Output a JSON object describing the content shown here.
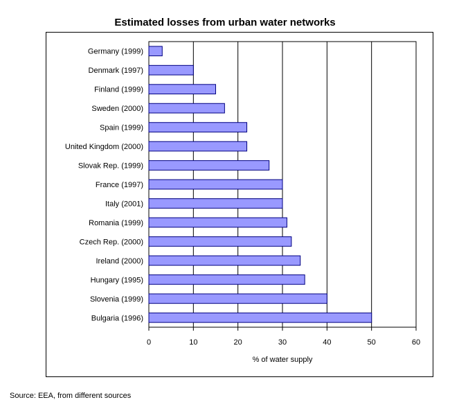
{
  "chart_data": {
    "type": "bar",
    "orientation": "horizontal",
    "title": "Estimated losses from urban water networks",
    "xlabel": "% of water supply",
    "ylabel": "",
    "categories": [
      "Germany (1999)",
      "Denmark (1997)",
      "Finland (1999)",
      "Sweden (2000)",
      "Spain (1999)",
      "United Kingdom (2000)",
      "Slovak Rep. (1999)",
      "France (1997)",
      "Italy (2001)",
      "Romania (1999)",
      "Czech Rep. (2000)",
      "Ireland (2000)",
      "Hungary (1995)",
      "Slovenia (1999)",
      "Bulgaria (1996)"
    ],
    "values": [
      3,
      10,
      15,
      17,
      22,
      22,
      27,
      30,
      30,
      31,
      32,
      34,
      35,
      40,
      50
    ],
    "xlim": [
      0,
      60
    ],
    "xticks": [
      0,
      10,
      20,
      30,
      40,
      50,
      60
    ],
    "grid": "vertical",
    "bar_color": "#9999ff",
    "bar_edge_color": "#000080"
  },
  "source_note": "Source: EEA, from different sources"
}
